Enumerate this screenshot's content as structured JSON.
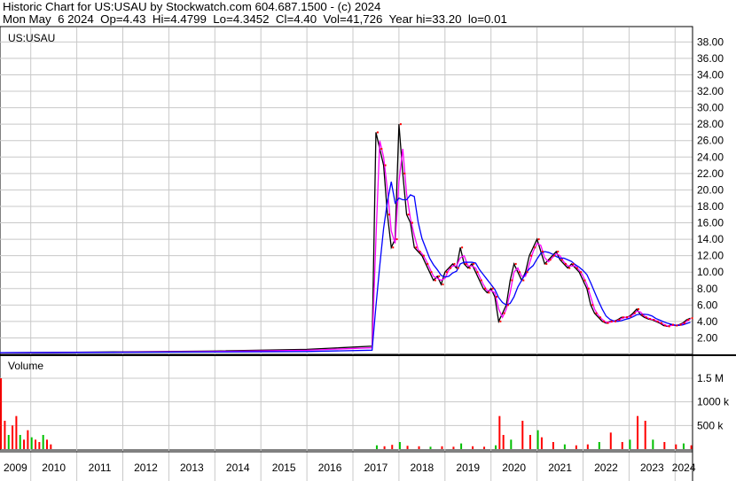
{
  "header": {
    "title": "Historic Chart for US:USAU by Stockwatch.com 604.687.1500 - (c) 2024",
    "quote": "Mon May  6 2024  Op=4.43  Hi=4.4799  Lo=4.3452  Cl=4.40  Vol=41,726  Year hi=33.20  lo=0.01"
  },
  "chart_data": {
    "type": "line",
    "symbol": "US:USAU",
    "volume_label": "Volume",
    "grid": true,
    "colors": {
      "price": "#000000",
      "close_marks": "#ff0000",
      "ma_short": "#ff00ff",
      "ma_long": "#0000ff",
      "vol_up": "#00c000",
      "vol_down": "#ff0000"
    },
    "ylim": [
      0,
      39
    ],
    "yticks": [
      "2.00",
      "4.00",
      "6.00",
      "8.00",
      "10.00",
      "12.00",
      "14.00",
      "16.00",
      "18.00",
      "20.00",
      "22.00",
      "24.00",
      "26.00",
      "28.00",
      "30.00",
      "32.00",
      "34.00",
      "36.00",
      "38.00"
    ],
    "vol_ticks": [
      {
        "label": "1.5 M",
        "value": 1500
      },
      {
        "label": "1000 k",
        "value": 1000
      },
      {
        "label": "500 k",
        "value": 500
      }
    ],
    "years": [
      "2009",
      "2010",
      "2011",
      "2012",
      "2013",
      "2014",
      "2015",
      "2016",
      "2017",
      "2018",
      "2019",
      "2020",
      "2021",
      "2022",
      "2023",
      "2024"
    ],
    "price": [
      [
        "2009-01",
        0.2
      ],
      [
        "2010-06",
        0.22
      ],
      [
        "2012-01",
        0.3
      ],
      [
        "2014-01",
        0.4
      ],
      [
        "2016-01",
        0.6
      ],
      [
        "2017-06",
        1.0
      ],
      [
        "2017-07",
        27
      ],
      [
        "2017-08",
        25
      ],
      [
        "2017-09",
        23
      ],
      [
        "2017-10",
        17
      ],
      [
        "2017-11",
        13
      ],
      [
        "2017-12",
        14
      ],
      [
        "2018-01",
        28
      ],
      [
        "2018-02",
        22
      ],
      [
        "2018-03",
        17
      ],
      [
        "2018-04",
        16
      ],
      [
        "2018-05",
        13
      ],
      [
        "2018-06",
        12.5
      ],
      [
        "2018-07",
        12
      ],
      [
        "2018-08",
        11
      ],
      [
        "2018-09",
        10
      ],
      [
        "2018-10",
        9
      ],
      [
        "2018-11",
        9.5
      ],
      [
        "2018-12",
        8.5
      ],
      [
        "2019-01",
        10
      ],
      [
        "2019-02",
        10.5
      ],
      [
        "2019-03",
        11
      ],
      [
        "2019-04",
        10.5
      ],
      [
        "2019-05",
        13
      ],
      [
        "2019-06",
        11
      ],
      [
        "2019-07",
        10.5
      ],
      [
        "2019-08",
        11
      ],
      [
        "2019-09",
        10
      ],
      [
        "2019-10",
        9
      ],
      [
        "2019-11",
        8
      ],
      [
        "2019-12",
        7.5
      ],
      [
        "2020-01",
        8
      ],
      [
        "2020-02",
        7
      ],
      [
        "2020-03",
        4
      ],
      [
        "2020-04",
        5
      ],
      [
        "2020-05",
        6
      ],
      [
        "2020-06",
        9
      ],
      [
        "2020-07",
        11
      ],
      [
        "2020-08",
        10
      ],
      [
        "2020-09",
        9
      ],
      [
        "2020-10",
        10
      ],
      [
        "2020-11",
        12
      ],
      [
        "2020-12",
        13
      ],
      [
        "2021-01",
        14
      ],
      [
        "2021-02",
        12.5
      ],
      [
        "2021-03",
        11
      ],
      [
        "2021-04",
        11.5
      ],
      [
        "2021-05",
        12
      ],
      [
        "2021-06",
        12.5
      ],
      [
        "2021-07",
        11.5
      ],
      [
        "2021-08",
        11
      ],
      [
        "2021-09",
        10.5
      ],
      [
        "2021-10",
        11
      ],
      [
        "2021-11",
        10.5
      ],
      [
        "2021-12",
        10
      ],
      [
        "2022-01",
        9
      ],
      [
        "2022-02",
        8
      ],
      [
        "2022-03",
        6
      ],
      [
        "2022-04",
        5
      ],
      [
        "2022-05",
        4.5
      ],
      [
        "2022-06",
        4
      ],
      [
        "2022-07",
        3.8
      ],
      [
        "2022-08",
        4
      ],
      [
        "2022-09",
        4
      ],
      [
        "2022-10",
        4.2
      ],
      [
        "2022-11",
        4.5
      ],
      [
        "2022-12",
        4.5
      ],
      [
        "2023-01",
        4.6
      ],
      [
        "2023-02",
        5
      ],
      [
        "2023-03",
        5.5
      ],
      [
        "2023-04",
        4.8
      ],
      [
        "2023-05",
        4.5
      ],
      [
        "2023-06",
        4.3
      ],
      [
        "2023-07",
        4.2
      ],
      [
        "2023-08",
        4
      ],
      [
        "2023-09",
        3.8
      ],
      [
        "2023-10",
        3.5
      ],
      [
        "2023-11",
        3.4
      ],
      [
        "2023-12",
        3.6
      ],
      [
        "2024-01",
        3.5
      ],
      [
        "2024-02",
        3.6
      ],
      [
        "2024-03",
        3.8
      ],
      [
        "2024-04",
        4.2
      ],
      [
        "2024-05",
        4.4
      ]
    ],
    "volume_k": [
      [
        "2009-01",
        300
      ],
      [
        "2009-02",
        1600
      ],
      [
        "2009-03",
        900
      ],
      [
        "2009-04",
        400
      ],
      [
        "2009-05",
        1500
      ],
      [
        "2009-06",
        600
      ],
      [
        "2009-07",
        300
      ],
      [
        "2009-08",
        500
      ],
      [
        "2009-09",
        700
      ],
      [
        "2009-10",
        300
      ],
      [
        "2009-11",
        200
      ],
      [
        "2009-12",
        400
      ],
      [
        "2010-01",
        250
      ],
      [
        "2010-02",
        200
      ],
      [
        "2010-03",
        150
      ],
      [
        "2010-04",
        300
      ],
      [
        "2010-05",
        200
      ],
      [
        "2010-06",
        100
      ],
      [
        "2017-07",
        80
      ],
      [
        "2017-09",
        60
      ],
      [
        "2017-11",
        90
      ],
      [
        "2018-01",
        150
      ],
      [
        "2018-03",
        70
      ],
      [
        "2018-06",
        60
      ],
      [
        "2018-09",
        50
      ],
      [
        "2018-12",
        60
      ],
      [
        "2019-03",
        50
      ],
      [
        "2019-05",
        120
      ],
      [
        "2019-08",
        60
      ],
      [
        "2019-11",
        50
      ],
      [
        "2020-02",
        80
      ],
      [
        "2020-03",
        700
      ],
      [
        "2020-04",
        300
      ],
      [
        "2020-06",
        200
      ],
      [
        "2020-09",
        600
      ],
      [
        "2020-11",
        300
      ],
      [
        "2021-01",
        400
      ],
      [
        "2021-02",
        250
      ],
      [
        "2021-05",
        150
      ],
      [
        "2021-08",
        100
      ],
      [
        "2021-11",
        80
      ],
      [
        "2022-02",
        100
      ],
      [
        "2022-05",
        150
      ],
      [
        "2022-08",
        350
      ],
      [
        "2022-11",
        150
      ],
      [
        "2023-01",
        200
      ],
      [
        "2023-03",
        700
      ],
      [
        "2023-05",
        600
      ],
      [
        "2023-07",
        200
      ],
      [
        "2023-10",
        150
      ],
      [
        "2024-01",
        100
      ],
      [
        "2024-03",
        120
      ],
      [
        "2024-05",
        80
      ]
    ]
  }
}
